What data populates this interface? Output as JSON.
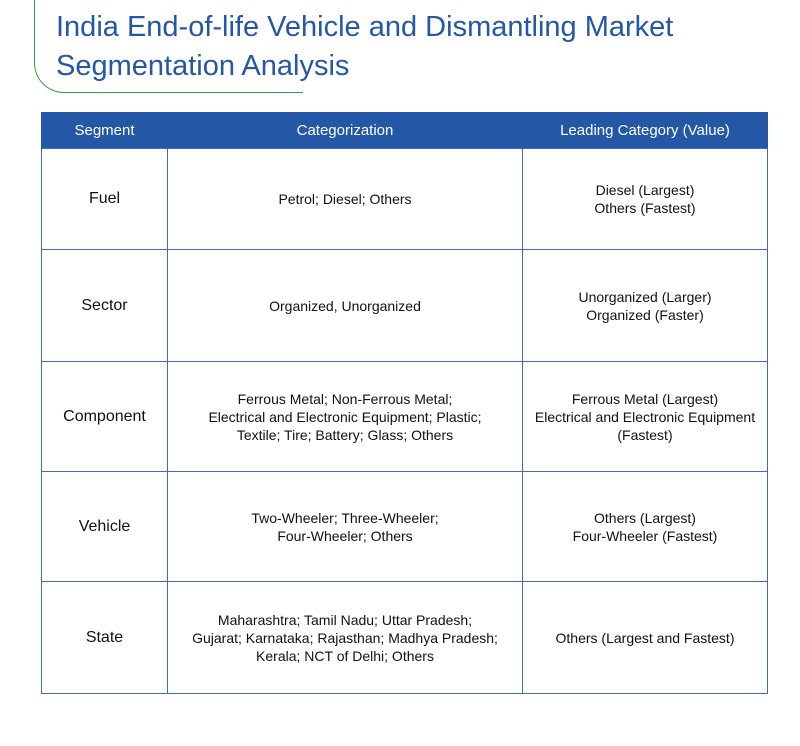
{
  "title": {
    "line1": "India End-of-life Vehicle and Dismantling Market",
    "line2": "Segmentation Analysis"
  },
  "table": {
    "headers": [
      "Segment",
      "Categorization",
      "Leading Category (Value)"
    ],
    "rows": [
      {
        "segment": "Fuel",
        "categorization": [
          "Petrol; Diesel; Others"
        ],
        "leading": [
          "Diesel (Largest)",
          "Others (Fastest)"
        ]
      },
      {
        "segment": "Sector",
        "categorization": [
          "Organized, Unorganized"
        ],
        "leading": [
          "Unorganized (Larger)",
          "Organized (Faster)"
        ]
      },
      {
        "segment": "Component",
        "categorization": [
          "Ferrous Metal; Non-Ferrous Metal;",
          "Electrical and Electronic Equipment; Plastic;",
          "Textile; Tire; Battery; Glass; Others"
        ],
        "leading": [
          "Ferrous Metal (Largest)",
          "Electrical and Electronic Equipment",
          "(Fastest)"
        ]
      },
      {
        "segment": "Vehicle",
        "categorization": [
          "Two-Wheeler; Three-Wheeler;",
          "Four-Wheeler; Others"
        ],
        "leading": [
          "Others (Largest)",
          "Four-Wheeler (Fastest)"
        ]
      },
      {
        "segment": "State",
        "categorization": [
          "Maharashtra; Tamil Nadu; Uttar Pradesh;",
          "Gujarat; Karnataka; Rajasthan; Madhya Pradesh;",
          "Kerala; NCT of Delhi; Others"
        ],
        "leading": [
          "Others (Largest and Fastest)"
        ]
      }
    ]
  },
  "colors": {
    "header_bg": "#2457a6",
    "title_text": "#2457a6",
    "accent_frame": "#3a9a48",
    "border": "#3d6cb8"
  }
}
